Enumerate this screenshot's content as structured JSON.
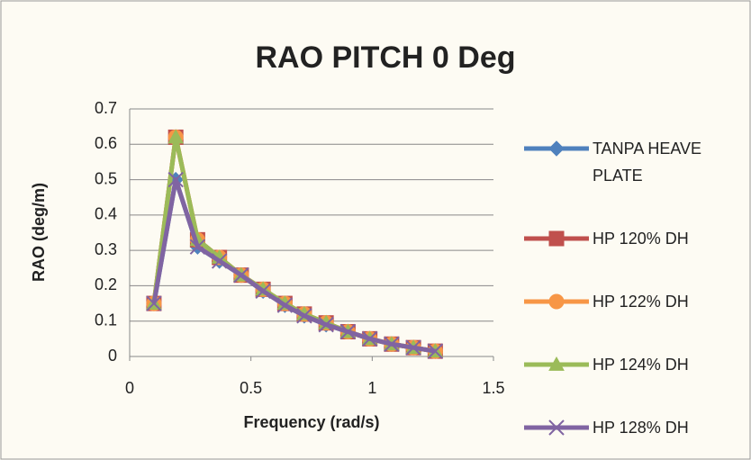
{
  "chart_data": {
    "type": "line",
    "title": "RAO PITCH 0 Deg",
    "x_label": "Frequency (rad/s)",
    "y_label": "RAO (deg/m)",
    "x": [
      0.1,
      0.19,
      0.28,
      0.37,
      0.46,
      0.55,
      0.64,
      0.72,
      0.81,
      0.9,
      0.99,
      1.08,
      1.17,
      1.26
    ],
    "series": [
      {
        "name": "TANPA HEAVE PLATE",
        "color": "#4f81bd",
        "marker": "diamond",
        "values": [
          0.15,
          0.5,
          0.31,
          0.27,
          0.23,
          0.185,
          0.145,
          0.115,
          0.09,
          0.07,
          0.05,
          0.035,
          0.025,
          0.015
        ]
      },
      {
        "name": "HP 120% DH",
        "color": "#c0504d",
        "marker": "square",
        "values": [
          0.15,
          0.62,
          0.33,
          0.28,
          0.23,
          0.19,
          0.15,
          0.12,
          0.095,
          0.07,
          0.05,
          0.035,
          0.025,
          0.015
        ]
      },
      {
        "name": "HP 122% DH",
        "color": "#f79646",
        "marker": "circle",
        "values": [
          0.15,
          0.62,
          0.33,
          0.28,
          0.23,
          0.19,
          0.15,
          0.12,
          0.095,
          0.07,
          0.05,
          0.035,
          0.025,
          0.015
        ]
      },
      {
        "name": "HP 124% DH",
        "color": "#9bbb59",
        "marker": "triangle",
        "values": [
          0.15,
          0.62,
          0.33,
          0.28,
          0.23,
          0.19,
          0.15,
          0.12,
          0.095,
          0.07,
          0.05,
          0.035,
          0.025,
          0.015
        ]
      },
      {
        "name": "HP 128% DH",
        "color": "#8064a2",
        "marker": "x",
        "values": [
          0.15,
          0.5,
          0.31,
          0.27,
          0.23,
          0.185,
          0.145,
          0.115,
          0.09,
          0.07,
          0.05,
          0.035,
          0.025,
          0.015
        ]
      }
    ],
    "xlim": [
      0,
      1.5
    ],
    "xticks": [
      0,
      0.5,
      1,
      1.5
    ],
    "ylim": [
      0,
      0.7
    ],
    "yticks": [
      0,
      0.1,
      0.2,
      0.3,
      0.4,
      0.5,
      0.6,
      0.7
    ],
    "grid": true
  }
}
